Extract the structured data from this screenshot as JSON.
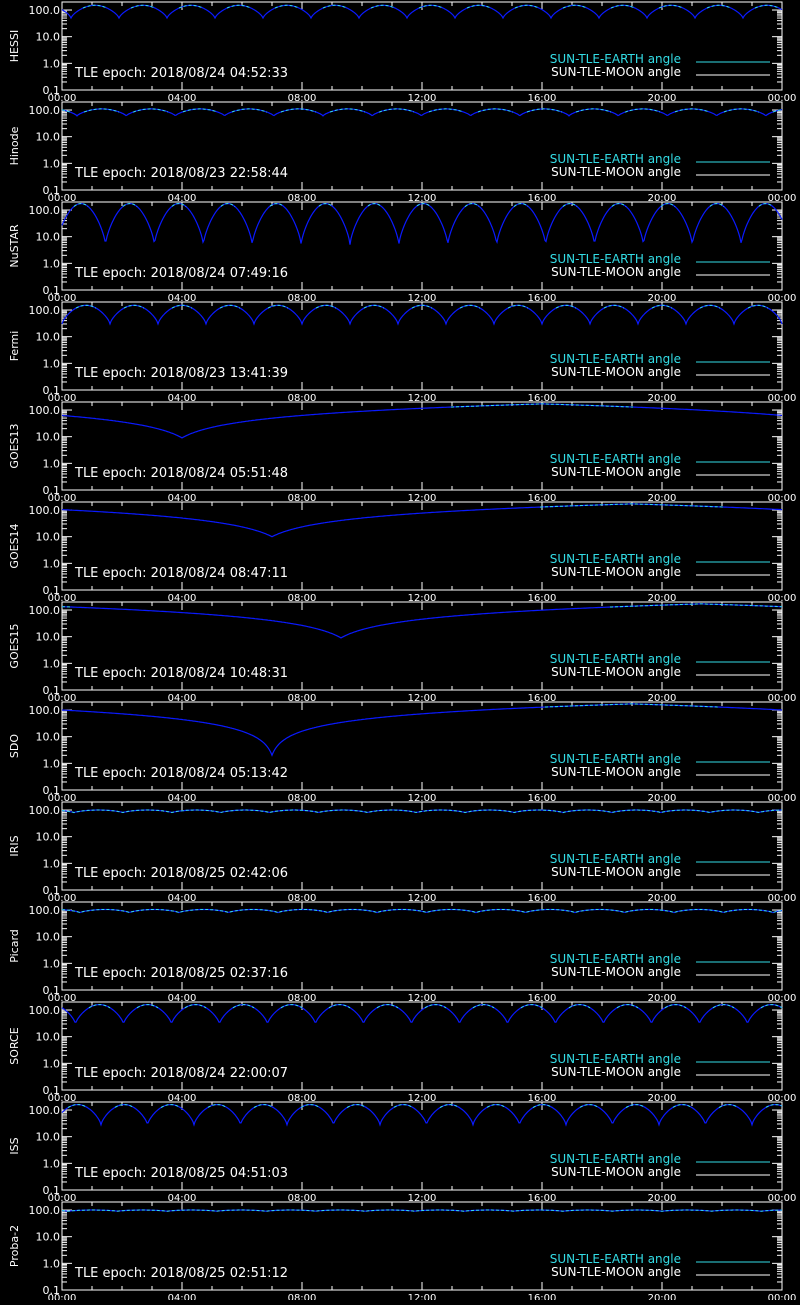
{
  "colors": {
    "background": "#000000",
    "axis": "#ffffff",
    "earth": "#33dde6",
    "moon": "#ffffff",
    "curve": "#0a1aff"
  },
  "legend": {
    "earth_label": "SUN-TLE-EARTH angle",
    "moon_label": "SUN-TLE-MOON angle"
  },
  "chart_data": [
    {
      "type": "line",
      "satellite": "HESSI",
      "epoch_text": "TLE epoch: 2018/08/24 04:52:33",
      "x_ticks": [
        "00:00",
        "04:00",
        "08:00",
        "12:00",
        "16:00",
        "20:00",
        "00:00"
      ],
      "y_ticks": [
        "100.0",
        "10.0",
        "1.0",
        "0.1"
      ],
      "y_scale": "log",
      "ylim": [
        0.1,
        200
      ],
      "xlim_hours": [
        0,
        24
      ],
      "curve": {
        "shape": "periodic",
        "period_hours": 1.6,
        "phase_hours": 0.3,
        "min": 50,
        "max": 150
      }
    },
    {
      "type": "line",
      "satellite": "Hinode",
      "epoch_text": "TLE epoch: 2018/08/23 22:58:44",
      "x_ticks": [
        "00:00",
        "04:00",
        "08:00",
        "12:00",
        "16:00",
        "20:00",
        "00:00"
      ],
      "y_ticks": [
        "100.0",
        "10.0",
        "1.0",
        "0.1"
      ],
      "y_scale": "log",
      "ylim": [
        0.1,
        200
      ],
      "xlim_hours": [
        0,
        24
      ],
      "curve": {
        "shape": "periodic",
        "period_hours": 1.64,
        "phase_hours": 0.5,
        "min": 60,
        "max": 110
      }
    },
    {
      "type": "line",
      "satellite": "NuSTAR",
      "epoch_text": "TLE epoch: 2018/08/24 07:49:16",
      "x_ticks": [
        "00:00",
        "04:00",
        "08:00",
        "12:00",
        "16:00",
        "20:00",
        "00:00"
      ],
      "y_ticks": [
        "100.0",
        "10.0",
        "1.0",
        "0.1"
      ],
      "y_scale": "log",
      "ylim": [
        0.1,
        200
      ],
      "xlim_hours": [
        0,
        24
      ],
      "curve": {
        "shape": "periodic",
        "period_hours": 1.63,
        "phase_hours": 1.45,
        "min": 5,
        "max": 175
      }
    },
    {
      "type": "line",
      "satellite": "Fermi",
      "epoch_text": "TLE epoch: 2018/08/23 13:41:39",
      "x_ticks": [
        "00:00",
        "04:00",
        "08:00",
        "12:00",
        "16:00",
        "20:00",
        "00:00"
      ],
      "y_ticks": [
        "100.0",
        "10.0",
        "1.0",
        "0.1"
      ],
      "y_scale": "log",
      "ylim": [
        0.1,
        200
      ],
      "xlim_hours": [
        0,
        24
      ],
      "curve": {
        "shape": "periodic",
        "period_hours": 1.6,
        "phase_hours": 0.0,
        "min": 30,
        "max": 150
      }
    },
    {
      "type": "line",
      "satellite": "GOES13",
      "epoch_text": "TLE epoch: 2018/08/24 05:51:48",
      "x_ticks": [
        "00:00",
        "04:00",
        "08:00",
        "12:00",
        "16:00",
        "20:00",
        "00:00"
      ],
      "y_ticks": [
        "100.0",
        "10.0",
        "1.0",
        "0.1"
      ],
      "y_scale": "log",
      "ylim": [
        0.1,
        200
      ],
      "xlim_hours": [
        0,
        24
      ],
      "curve": {
        "shape": "daily",
        "min_hour": 4.0,
        "min": 9,
        "max": 170
      }
    },
    {
      "type": "line",
      "satellite": "GOES14",
      "epoch_text": "TLE epoch: 2018/08/24 08:47:11",
      "x_ticks": [
        "00:00",
        "04:00",
        "08:00",
        "12:00",
        "16:00",
        "20:00",
        "00:00"
      ],
      "y_ticks": [
        "100.0",
        "10.0",
        "1.0",
        "0.1"
      ],
      "y_scale": "log",
      "ylim": [
        0.1,
        200
      ],
      "xlim_hours": [
        0,
        24
      ],
      "curve": {
        "shape": "daily",
        "min_hour": 7.0,
        "min": 10,
        "max": 170
      }
    },
    {
      "type": "line",
      "satellite": "GOES15",
      "epoch_text": "TLE epoch: 2018/08/24 10:48:31",
      "x_ticks": [
        "00:00",
        "04:00",
        "08:00",
        "12:00",
        "16:00",
        "20:00",
        "00:00"
      ],
      "y_ticks": [
        "100.0",
        "10.0",
        "1.0",
        "0.1"
      ],
      "y_scale": "log",
      "ylim": [
        0.1,
        200
      ],
      "xlim_hours": [
        0,
        24
      ],
      "curve": {
        "shape": "daily",
        "min_hour": 9.3,
        "min": 9,
        "max": 170
      }
    },
    {
      "type": "line",
      "satellite": "SDO",
      "epoch_text": "TLE epoch: 2018/08/24 05:13:42",
      "x_ticks": [
        "00:00",
        "04:00",
        "08:00",
        "12:00",
        "16:00",
        "20:00",
        "00:00"
      ],
      "y_ticks": [
        "100.0",
        "10.0",
        "1.0",
        "0.1"
      ],
      "y_scale": "log",
      "ylim": [
        0.1,
        200
      ],
      "xlim_hours": [
        0,
        24
      ],
      "curve": {
        "shape": "daily",
        "min_hour": 7.0,
        "min": 2,
        "max": 170
      }
    },
    {
      "type": "line",
      "satellite": "IRIS",
      "epoch_text": "TLE epoch: 2018/08/25 02:42:06",
      "x_ticks": [
        "00:00",
        "04:00",
        "08:00",
        "12:00",
        "16:00",
        "20:00",
        "00:00"
      ],
      "y_ticks": [
        "100.0",
        "10.0",
        "1.0",
        "0.1"
      ],
      "y_scale": "log",
      "ylim": [
        0.1,
        200
      ],
      "xlim_hours": [
        0,
        24
      ],
      "curve": {
        "shape": "periodic",
        "period_hours": 1.63,
        "phase_hours": 0.4,
        "min": 80,
        "max": 100
      }
    },
    {
      "type": "line",
      "satellite": "Picard",
      "epoch_text": "TLE epoch: 2018/08/25 02:37:16",
      "x_ticks": [
        "00:00",
        "04:00",
        "08:00",
        "12:00",
        "16:00",
        "20:00",
        "00:00"
      ],
      "y_ticks": [
        "100.0",
        "10.0",
        "1.0",
        "0.1"
      ],
      "y_scale": "log",
      "ylim": [
        0.1,
        200
      ],
      "xlim_hours": [
        0,
        24
      ],
      "curve": {
        "shape": "periodic",
        "period_hours": 1.65,
        "phase_hours": 0.6,
        "min": 80,
        "max": 105
      }
    },
    {
      "type": "line",
      "satellite": "SORCE",
      "epoch_text": "TLE epoch: 2018/08/24 22:00:07",
      "x_ticks": [
        "00:00",
        "04:00",
        "08:00",
        "12:00",
        "16:00",
        "20:00",
        "00:00"
      ],
      "y_ticks": [
        "100.0",
        "10.0",
        "1.0",
        "0.1"
      ],
      "y_scale": "log",
      "ylim": [
        0.1,
        200
      ],
      "xlim_hours": [
        0,
        24
      ],
      "curve": {
        "shape": "periodic",
        "period_hours": 1.6,
        "phase_hours": 0.45,
        "min": 30,
        "max": 160
      }
    },
    {
      "type": "line",
      "satellite": "ISS",
      "epoch_text": "TLE epoch: 2018/08/25 04:51:03",
      "x_ticks": [
        "00:00",
        "04:00",
        "08:00",
        "12:00",
        "16:00",
        "20:00",
        "00:00"
      ],
      "y_ticks": [
        "100.0",
        "10.0",
        "1.0",
        "0.1"
      ],
      "y_scale": "log",
      "ylim": [
        0.1,
        200
      ],
      "xlim_hours": [
        0,
        24
      ],
      "curve": {
        "shape": "periodic",
        "period_hours": 1.55,
        "phase_hours": 1.3,
        "min": 28,
        "max": 160
      }
    },
    {
      "type": "line",
      "satellite": "Proba-2",
      "epoch_text": "TLE epoch: 2018/08/25 02:51:12",
      "x_ticks": [
        "00:00",
        "04:00",
        "08:00",
        "12:00",
        "16:00",
        "20:00",
        "00:00"
      ],
      "y_ticks": [
        "100.0",
        "10.0",
        "1.0",
        "0.1"
      ],
      "y_scale": "log",
      "ylim": [
        0.1,
        200
      ],
      "xlim_hours": [
        0,
        24
      ],
      "curve": {
        "shape": "periodic",
        "period_hours": 1.65,
        "phase_hours": 0.2,
        "min": 90,
        "max": 100
      }
    }
  ]
}
